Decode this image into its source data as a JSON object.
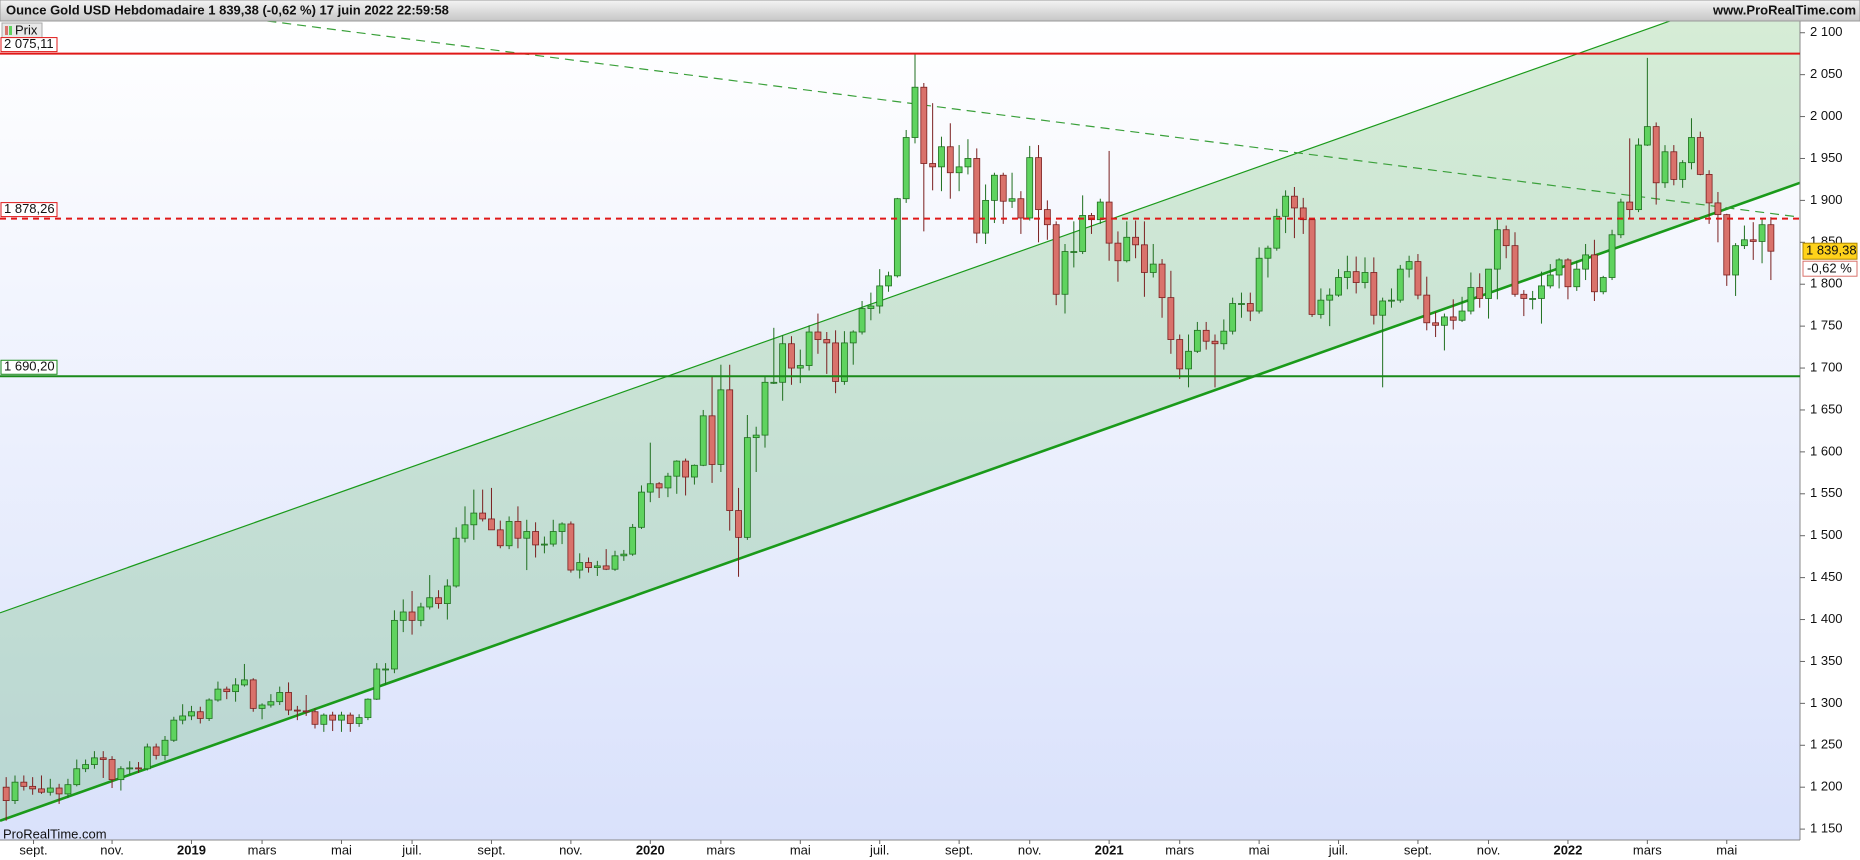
{
  "chart_data": {
    "type": "candlestick",
    "title": "Ounce Gold USD Hebdomadaire 1 839,38 (-0,62 %) 17 juin 2022 22:59:58",
    "site": "www.ProRealTime.com",
    "watermark": "ProRealTime.com",
    "legend": "Prix",
    "up_color": "#5fd35f",
    "up_border": "#1f6f1f",
    "down_color": "#d9726b",
    "down_border": "#7a1f1f",
    "xlim": [
      -0.7,
      203.3
    ],
    "ylim": [
      1137,
      2114
    ],
    "yticks": [
      {
        "value": 1150,
        "label": "1 150"
      },
      {
        "value": 1200,
        "label": "1 200"
      },
      {
        "value": 1250,
        "label": "1 250"
      },
      {
        "value": 1300,
        "label": "1 300"
      },
      {
        "value": 1350,
        "label": "1 350"
      },
      {
        "value": 1400,
        "label": "1 400"
      },
      {
        "value": 1450,
        "label": "1 450"
      },
      {
        "value": 1500,
        "label": "1 500"
      },
      {
        "value": 1550,
        "label": "1 550"
      },
      {
        "value": 1600,
        "label": "1 600"
      },
      {
        "value": 1650,
        "label": "1 650"
      },
      {
        "value": 1700,
        "label": "1 700"
      },
      {
        "value": 1750,
        "label": "1 750"
      },
      {
        "value": 1800,
        "label": "1 800"
      },
      {
        "value": 1850,
        "label": "1 850"
      },
      {
        "value": 1900,
        "label": "1 900"
      },
      {
        "value": 1950,
        "label": "1 950"
      },
      {
        "value": 2000,
        "label": "2 000"
      },
      {
        "value": 2050,
        "label": "2 050"
      },
      {
        "value": 2100,
        "label": "2 100"
      }
    ],
    "xticks": [
      {
        "value": 3.1,
        "label": "sept."
      },
      {
        "value": 12,
        "label": "nov."
      },
      {
        "value": 21,
        "label": "2019"
      },
      {
        "value": 29,
        "label": "mars"
      },
      {
        "value": 38,
        "label": "mai"
      },
      {
        "value": 46,
        "label": "juil."
      },
      {
        "value": 55,
        "label": "sept."
      },
      {
        "value": 64,
        "label": "nov."
      },
      {
        "value": 73,
        "label": "2020"
      },
      {
        "value": 81,
        "label": "mars"
      },
      {
        "value": 90,
        "label": "mai"
      },
      {
        "value": 99,
        "label": "juil."
      },
      {
        "value": 108,
        "label": "sept."
      },
      {
        "value": 116,
        "label": "nov."
      },
      {
        "value": 125,
        "label": "2021"
      },
      {
        "value": 133,
        "label": "mars"
      },
      {
        "value": 142,
        "label": "mai"
      },
      {
        "value": 151,
        "label": "juil."
      },
      {
        "value": 160,
        "label": "sept."
      },
      {
        "value": 168,
        "label": "nov."
      },
      {
        "value": 177,
        "label": "2022"
      },
      {
        "value": 186,
        "label": "mars"
      },
      {
        "value": 195,
        "label": "mai"
      }
    ],
    "levels": [
      {
        "value": 2075.11,
        "label": "2 075,11",
        "color": "#e01818",
        "dashed": false
      },
      {
        "value": 1878.26,
        "label": "1 878,26",
        "color": "#e01818",
        "dashed": true
      },
      {
        "value": 1690.2,
        "label": "1 690,20",
        "color": "#1a8a1a",
        "dashed": false
      }
    ],
    "channel": {
      "color": "#1a9a1a",
      "fill": "rgba(70,175,70,0.22)",
      "lower": [
        [
          -0.7,
          1160
        ],
        [
          203.3,
          1921
        ]
      ],
      "upper": [
        [
          -0.7,
          1408
        ],
        [
          203.3,
          2169
        ]
      ]
    },
    "trendline": {
      "color": "#3aa03a",
      "points": [
        [
          29.6,
          2114
        ],
        [
          203.3,
          1880
        ]
      ]
    },
    "last_price": {
      "value": 1839.38,
      "label": "1 839,38"
    },
    "change_label": "-0,62 %",
    "candles": [
      [
        1200,
        1212,
        1160,
        1184
      ],
      [
        1184,
        1214,
        1180,
        1206
      ],
      [
        1206,
        1214,
        1196,
        1201
      ],
      [
        1201,
        1212,
        1191,
        1198
      ],
      [
        1198,
        1214,
        1192,
        1194
      ],
      [
        1194,
        1210,
        1190,
        1199
      ],
      [
        1199,
        1204,
        1180,
        1192
      ],
      [
        1192,
        1210,
        1187,
        1203
      ],
      [
        1203,
        1233,
        1201,
        1222
      ],
      [
        1222,
        1233,
        1218,
        1227
      ],
      [
        1227,
        1243,
        1222,
        1235
      ],
      [
        1235,
        1243,
        1211,
        1233
      ],
      [
        1233,
        1237,
        1199,
        1209
      ],
      [
        1209,
        1225,
        1196,
        1222
      ],
      [
        1222,
        1231,
        1215,
        1223
      ],
      [
        1223,
        1230,
        1217,
        1222
      ],
      [
        1222,
        1252,
        1220,
        1248
      ],
      [
        1248,
        1252,
        1233,
        1238
      ],
      [
        1238,
        1261,
        1232,
        1256
      ],
      [
        1256,
        1284,
        1254,
        1280
      ],
      [
        1280,
        1299,
        1275,
        1285
      ],
      [
        1285,
        1297,
        1280,
        1290
      ],
      [
        1290,
        1296,
        1276,
        1282
      ],
      [
        1282,
        1306,
        1279,
        1304
      ],
      [
        1304,
        1326,
        1302,
        1317
      ],
      [
        1317,
        1320,
        1305,
        1314
      ],
      [
        1314,
        1330,
        1302,
        1322
      ],
      [
        1322,
        1347,
        1320,
        1328
      ],
      [
        1328,
        1330,
        1290,
        1294
      ],
      [
        1294,
        1300,
        1281,
        1298
      ],
      [
        1298,
        1311,
        1295,
        1302
      ],
      [
        1302,
        1320,
        1298,
        1313
      ],
      [
        1313,
        1325,
        1286,
        1292
      ],
      [
        1292,
        1297,
        1280,
        1291
      ],
      [
        1291,
        1310,
        1285,
        1290
      ],
      [
        1290,
        1294,
        1270,
        1275
      ],
      [
        1275,
        1288,
        1266,
        1286
      ],
      [
        1286,
        1290,
        1267,
        1280
      ],
      [
        1280,
        1290,
        1266,
        1286
      ],
      [
        1286,
        1289,
        1266,
        1276
      ],
      [
        1276,
        1287,
        1272,
        1283
      ],
      [
        1283,
        1306,
        1280,
        1305
      ],
      [
        1305,
        1348,
        1304,
        1341
      ],
      [
        1341,
        1348,
        1322,
        1341
      ],
      [
        1341,
        1411,
        1336,
        1399
      ],
      [
        1399,
        1424,
        1385,
        1409
      ],
      [
        1409,
        1434,
        1382,
        1399
      ],
      [
        1399,
        1420,
        1392,
        1415
      ],
      [
        1415,
        1453,
        1412,
        1426
      ],
      [
        1426,
        1435,
        1413,
        1419
      ],
      [
        1419,
        1448,
        1400,
        1440
      ],
      [
        1440,
        1510,
        1438,
        1497
      ],
      [
        1497,
        1535,
        1492,
        1513
      ],
      [
        1513,
        1555,
        1495,
        1527
      ],
      [
        1527,
        1555,
        1517,
        1520
      ],
      [
        1520,
        1557,
        1507,
        1507
      ],
      [
        1507,
        1518,
        1485,
        1488
      ],
      [
        1488,
        1523,
        1484,
        1517
      ],
      [
        1517,
        1535,
        1485,
        1497
      ],
      [
        1497,
        1519,
        1459,
        1505
      ],
      [
        1505,
        1516,
        1474,
        1489
      ],
      [
        1489,
        1499,
        1479,
        1490
      ],
      [
        1490,
        1519,
        1487,
        1505
      ],
      [
        1505,
        1516,
        1490,
        1514
      ],
      [
        1514,
        1517,
        1456,
        1459
      ],
      [
        1459,
        1479,
        1449,
        1468
      ],
      [
        1468,
        1474,
        1456,
        1462
      ],
      [
        1462,
        1470,
        1452,
        1464
      ],
      [
        1464,
        1484,
        1459,
        1460
      ],
      [
        1460,
        1482,
        1458,
        1476
      ],
      [
        1476,
        1483,
        1470,
        1478
      ],
      [
        1478,
        1514,
        1476,
        1510
      ],
      [
        1510,
        1560,
        1508,
        1552
      ],
      [
        1552,
        1611,
        1540,
        1562
      ],
      [
        1562,
        1564,
        1545,
        1557
      ],
      [
        1557,
        1575,
        1546,
        1571
      ],
      [
        1571,
        1590,
        1550,
        1589
      ],
      [
        1589,
        1592,
        1548,
        1570
      ],
      [
        1570,
        1585,
        1561,
        1584
      ],
      [
        1584,
        1650,
        1583,
        1643
      ],
      [
        1643,
        1690,
        1563,
        1585
      ],
      [
        1585,
        1704,
        1576,
        1674
      ],
      [
        1674,
        1704,
        1506,
        1530
      ],
      [
        1530,
        1557,
        1451,
        1498
      ],
      [
        1498,
        1644,
        1495,
        1617
      ],
      [
        1617,
        1630,
        1576,
        1620
      ],
      [
        1620,
        1690,
        1605,
        1683
      ],
      [
        1683,
        1748,
        1681,
        1683
      ],
      [
        1683,
        1739,
        1661,
        1729
      ],
      [
        1729,
        1738,
        1680,
        1700
      ],
      [
        1700,
        1722,
        1682,
        1703
      ],
      [
        1703,
        1751,
        1697,
        1743
      ],
      [
        1743,
        1765,
        1717,
        1734
      ],
      [
        1734,
        1743,
        1693,
        1730
      ],
      [
        1730,
        1745,
        1670,
        1684
      ],
      [
        1684,
        1744,
        1680,
        1730
      ],
      [
        1730,
        1745,
        1704,
        1743
      ],
      [
        1743,
        1780,
        1740,
        1771
      ],
      [
        1771,
        1790,
        1757,
        1774
      ],
      [
        1774,
        1818,
        1765,
        1798
      ],
      [
        1798,
        1815,
        1791,
        1810
      ],
      [
        1810,
        1903,
        1808,
        1902
      ],
      [
        1902,
        1984,
        1897,
        1975
      ],
      [
        1975,
        2075,
        1968,
        2035
      ],
      [
        2035,
        2040,
        1863,
        1944
      ],
      [
        1944,
        2016,
        1912,
        1940
      ],
      [
        1940,
        1976,
        1911,
        1964
      ],
      [
        1964,
        1992,
        1902,
        1933
      ],
      [
        1933,
        1966,
        1911,
        1940
      ],
      [
        1940,
        1973,
        1931,
        1950
      ],
      [
        1950,
        1962,
        1849,
        1861
      ],
      [
        1861,
        1919,
        1848,
        1900
      ],
      [
        1900,
        1933,
        1873,
        1930
      ],
      [
        1930,
        1933,
        1872,
        1899
      ],
      [
        1899,
        1933,
        1891,
        1902
      ],
      [
        1902,
        1911,
        1860,
        1879
      ],
      [
        1879,
        1965,
        1876,
        1951
      ],
      [
        1951,
        1966,
        1850,
        1889
      ],
      [
        1889,
        1900,
        1853,
        1871
      ],
      [
        1871,
        1875,
        1775,
        1788
      ],
      [
        1788,
        1848,
        1765,
        1839
      ],
      [
        1839,
        1875,
        1820,
        1839
      ],
      [
        1839,
        1906,
        1836,
        1882
      ],
      [
        1882,
        1885,
        1860,
        1877
      ],
      [
        1877,
        1902,
        1872,
        1898
      ],
      [
        1898,
        1959,
        1828,
        1849
      ],
      [
        1849,
        1863,
        1803,
        1828
      ],
      [
        1828,
        1875,
        1826,
        1856
      ],
      [
        1856,
        1876,
        1831,
        1847
      ],
      [
        1847,
        1875,
        1785,
        1814
      ],
      [
        1814,
        1848,
        1808,
        1824
      ],
      [
        1824,
        1830,
        1760,
        1784
      ],
      [
        1784,
        1816,
        1717,
        1734
      ],
      [
        1734,
        1740,
        1687,
        1699
      ],
      [
        1699,
        1740,
        1677,
        1720
      ],
      [
        1720,
        1755,
        1718,
        1745
      ],
      [
        1745,
        1755,
        1722,
        1732
      ],
      [
        1732,
        1740,
        1677,
        1729
      ],
      [
        1729,
        1758,
        1722,
        1744
      ],
      [
        1744,
        1784,
        1740,
        1777
      ],
      [
        1777,
        1790,
        1760,
        1777
      ],
      [
        1777,
        1790,
        1756,
        1768
      ],
      [
        1768,
        1844,
        1765,
        1831
      ],
      [
        1831,
        1846,
        1808,
        1843
      ],
      [
        1843,
        1890,
        1840,
        1881
      ],
      [
        1881,
        1912,
        1861,
        1905
      ],
      [
        1905,
        1916,
        1855,
        1891
      ],
      [
        1891,
        1903,
        1860,
        1877
      ],
      [
        1877,
        1878,
        1761,
        1764
      ],
      [
        1764,
        1795,
        1759,
        1781
      ],
      [
        1781,
        1795,
        1750,
        1787
      ],
      [
        1787,
        1818,
        1785,
        1808
      ],
      [
        1808,
        1834,
        1794,
        1815
      ],
      [
        1815,
        1833,
        1789,
        1802
      ],
      [
        1802,
        1832,
        1795,
        1814
      ],
      [
        1814,
        1832,
        1752,
        1763
      ],
      [
        1763,
        1784,
        1677,
        1780
      ],
      [
        1780,
        1795,
        1772,
        1781
      ],
      [
        1781,
        1823,
        1778,
        1818
      ],
      [
        1818,
        1834,
        1808,
        1827
      ],
      [
        1827,
        1836,
        1782,
        1787
      ],
      [
        1787,
        1809,
        1745,
        1754
      ],
      [
        1754,
        1767,
        1737,
        1751
      ],
      [
        1751,
        1765,
        1721,
        1761
      ],
      [
        1761,
        1782,
        1746,
        1757
      ],
      [
        1757,
        1785,
        1755,
        1768
      ],
      [
        1768,
        1814,
        1764,
        1796
      ],
      [
        1796,
        1813,
        1772,
        1783
      ],
      [
        1783,
        1818,
        1759,
        1818
      ],
      [
        1818,
        1877,
        1782,
        1865
      ],
      [
        1865,
        1870,
        1831,
        1846
      ],
      [
        1846,
        1862,
        1785,
        1788
      ],
      [
        1788,
        1793,
        1762,
        1783
      ],
      [
        1783,
        1792,
        1770,
        1783
      ],
      [
        1783,
        1815,
        1753,
        1798
      ],
      [
        1798,
        1824,
        1795,
        1811
      ],
      [
        1811,
        1831,
        1795,
        1829
      ],
      [
        1829,
        1831,
        1782,
        1797
      ],
      [
        1797,
        1828,
        1792,
        1818
      ],
      [
        1818,
        1848,
        1805,
        1835
      ],
      [
        1835,
        1853,
        1780,
        1791
      ],
      [
        1791,
        1810,
        1788,
        1808
      ],
      [
        1808,
        1865,
        1805,
        1859
      ],
      [
        1859,
        1902,
        1855,
        1898
      ],
      [
        1898,
        1974,
        1878,
        1889
      ],
      [
        1889,
        1974,
        1886,
        1966
      ],
      [
        1966,
        2070,
        1965,
        1988
      ],
      [
        1988,
        1993,
        1895,
        1921
      ],
      [
        1921,
        1966,
        1915,
        1958
      ],
      [
        1958,
        1966,
        1918,
        1925
      ],
      [
        1925,
        1948,
        1915,
        1945
      ],
      [
        1945,
        1998,
        1937,
        1975
      ],
      [
        1975,
        1982,
        1930,
        1931
      ],
      [
        1931,
        1936,
        1872,
        1897
      ],
      [
        1897,
        1910,
        1850,
        1883
      ],
      [
        1883,
        1884,
        1798,
        1811
      ],
      [
        1811,
        1849,
        1786,
        1846
      ],
      [
        1846,
        1870,
        1842,
        1853
      ],
      [
        1853,
        1874,
        1829,
        1851
      ],
      [
        1851,
        1879,
        1825,
        1871
      ],
      [
        1871,
        1880,
        1805,
        1839.38
      ]
    ]
  }
}
